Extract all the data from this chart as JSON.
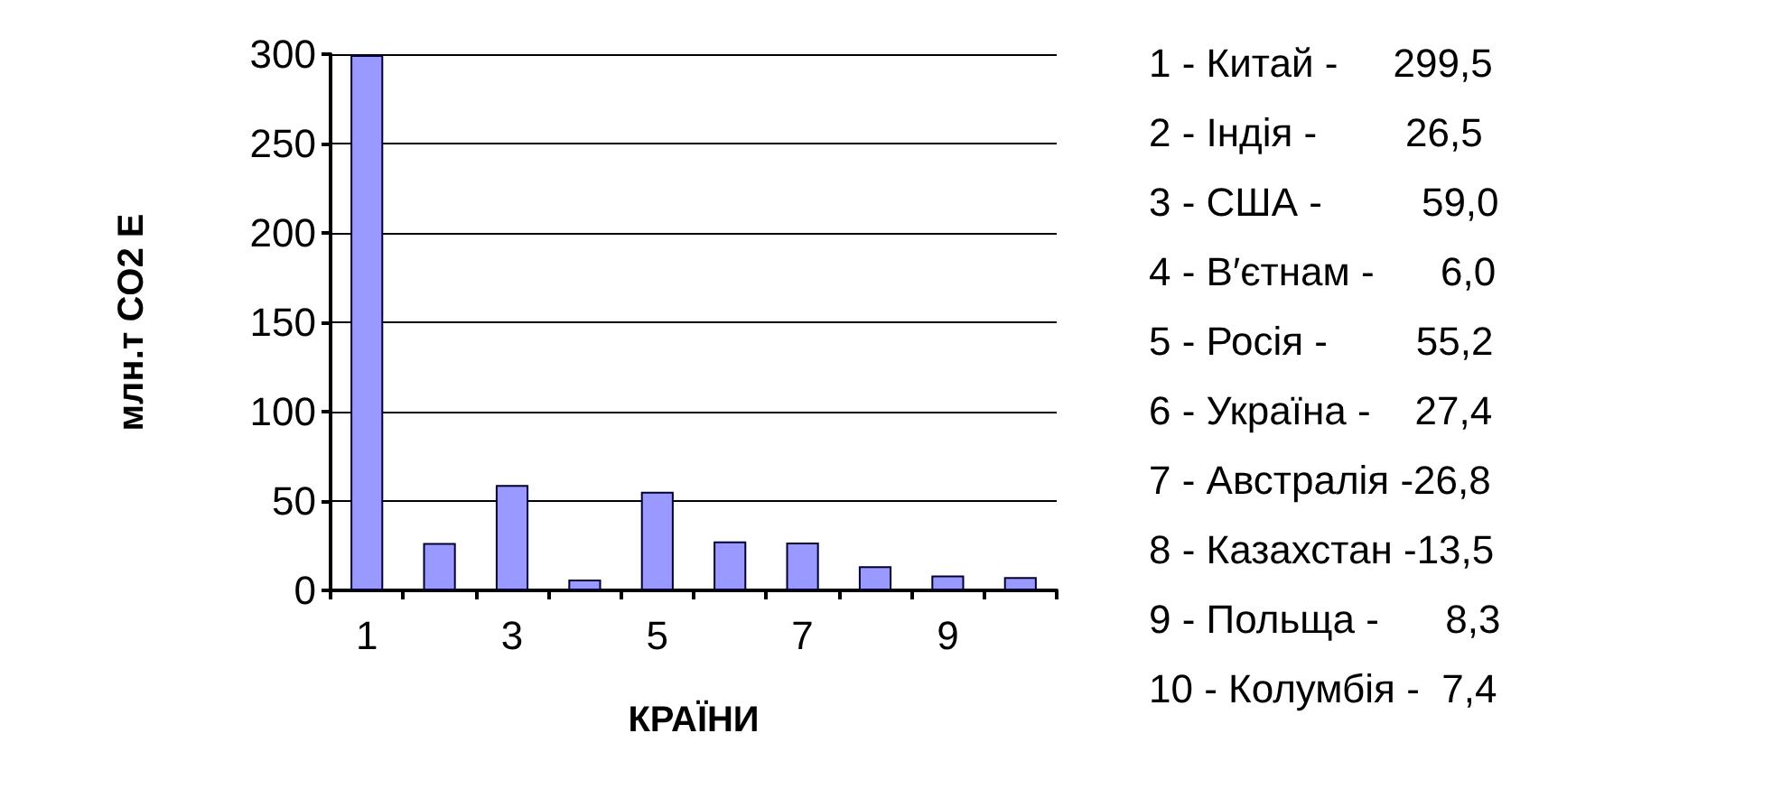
{
  "chart_data": {
    "type": "bar",
    "xlabel": "КРАЇНИ",
    "ylabel": "млн.т CO2 E",
    "categories": [
      "1",
      null,
      "3",
      null,
      "5",
      null,
      "7",
      null,
      "9",
      null
    ],
    "values": [
      299.5,
      26.5,
      59.0,
      6.0,
      55.2,
      27.4,
      26.8,
      13.5,
      8.3,
      7.4
    ],
    "color": "#9999ff",
    "ylim": [
      0,
      300
    ],
    "yticks": [
      0,
      50,
      100,
      150,
      200,
      250,
      300
    ],
    "grid": "y",
    "annotations": [
      "1 - Китай -     299,5",
      "2 - Індія -        26,5",
      "3 - США -         59,0",
      "4 - В′єтнам -      6,0",
      "5 - Росія -        55,2",
      "6 - Україна -    27,4",
      "7 - Австралія -26,8",
      "8 - Казахстан -13,5",
      "9 - Польща -      8,3",
      "10 - Колумбія -  7,4"
    ]
  }
}
